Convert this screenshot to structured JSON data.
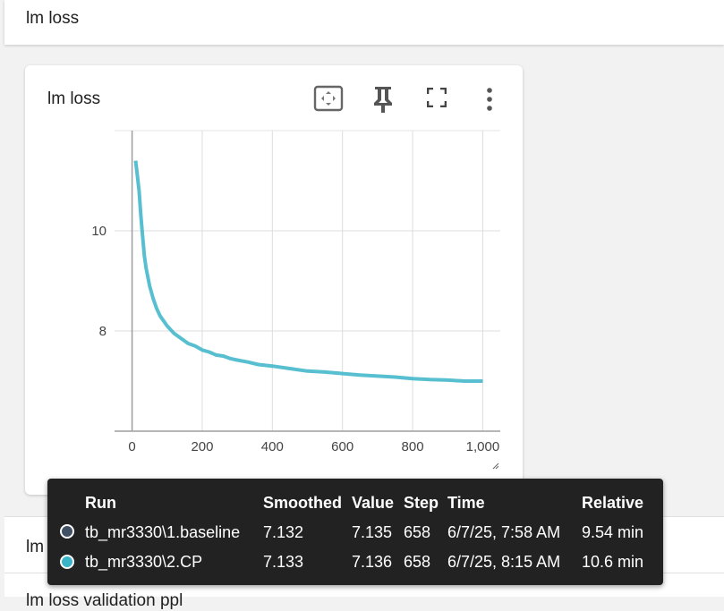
{
  "header": {
    "title": "lm loss"
  },
  "card": {
    "title": "lm loss",
    "icons": [
      "fit-domain-icon",
      "pin-icon",
      "fullscreen-icon",
      "more-vert-icon"
    ]
  },
  "chart_data": {
    "type": "line",
    "title": "",
    "xlabel": "",
    "ylabel": "",
    "xlim": [
      -50,
      1050
    ],
    "ylim": [
      6,
      12
    ],
    "x_ticks": [
      0,
      200,
      400,
      600,
      800,
      1000
    ],
    "x_tick_labels": [
      "0",
      "200",
      "400",
      "600",
      "800",
      "1,000"
    ],
    "y_ticks": [
      8,
      10
    ],
    "y_tick_labels": [
      "8",
      "10"
    ],
    "grid": true,
    "series": [
      {
        "color": "#3ab4c8",
        "x": [
          10,
          15,
          20,
          25,
          30,
          35,
          40,
          50,
          60,
          70,
          80,
          90,
          100,
          120,
          140,
          160,
          180,
          200,
          220,
          240,
          260,
          280,
          300,
          330,
          360,
          400,
          450,
          500,
          550,
          600,
          650,
          700,
          750,
          800,
          850,
          900,
          950,
          1000
        ],
        "y": [
          11.4,
          11.1,
          10.8,
          10.3,
          9.9,
          9.5,
          9.25,
          8.9,
          8.65,
          8.45,
          8.3,
          8.2,
          8.1,
          7.95,
          7.85,
          7.75,
          7.7,
          7.62,
          7.58,
          7.52,
          7.5,
          7.45,
          7.42,
          7.38,
          7.33,
          7.3,
          7.25,
          7.2,
          7.18,
          7.15,
          7.12,
          7.1,
          7.08,
          7.05,
          7.03,
          7.02,
          7.0,
          7.0
        ]
      }
    ]
  },
  "sections": {
    "validation_label": "lm loss validation",
    "validation_ppl_label": "lm loss validation ppl"
  },
  "tooltip": {
    "headers": {
      "run": "Run",
      "smoothed": "Smoothed",
      "value": "Value",
      "step": "Step",
      "time": "Time",
      "relative": "Relative"
    },
    "rows": [
      {
        "color": "#425066",
        "run": "tb_mr3330\\1.baseline",
        "smoothed": "7.132",
        "value": "7.135",
        "step": "658",
        "time": "6/7/25, 7:58 AM",
        "relative": "9.54 min"
      },
      {
        "color": "#3ab4c8",
        "run": "tb_mr3330\\2.CP",
        "smoothed": "7.133",
        "value": "7.136",
        "step": "658",
        "time": "6/7/25, 8:15 AM",
        "relative": "10.6 min"
      }
    ]
  }
}
